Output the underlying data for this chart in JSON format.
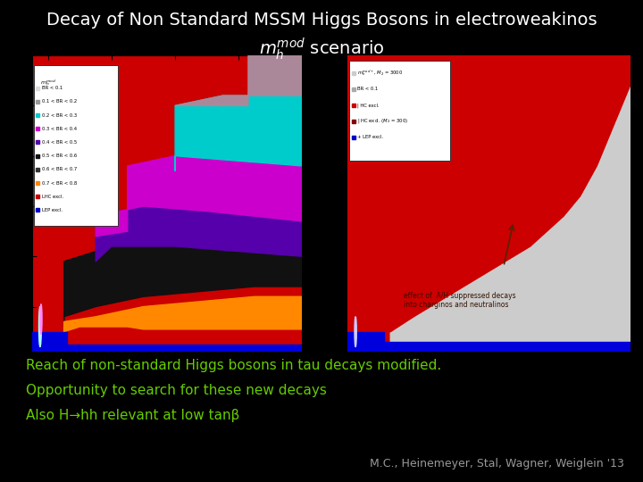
{
  "title_line1": "Decay of Non Standard MSSM Higgs Bosons in electroweakinos",
  "title_line2": "$m_h^{mod}$ scenario",
  "title_color": "#ffffff",
  "bg_color": "#000000",
  "bottom_text_lines": [
    "Reach of non-standard Higgs bosons in tau decays modified.",
    "Opportunity to search for these new decays",
    "Also H→hh relevant at low tanβ"
  ],
  "bottom_text_color": "#66cc00",
  "citation": "M.C., Heinemeyer, Stal, Wagner, Weiglein '13",
  "citation_color": "#999999",
  "title_fontsize": 14,
  "subtitle_fontsize": 14,
  "body_fontsize": 11,
  "citation_fontsize": 9,
  "left_legend": [
    [
      "#ddddff",
      "BR < 0.1"
    ],
    [
      "#999999",
      "0.1 < BR < 0.2"
    ],
    [
      "#00cccc",
      "0.2 < BR < 0.3"
    ],
    [
      "#cc00cc",
      "0.3 < BR < 0.4"
    ],
    [
      "#5500aa",
      "0.4 < BR < 0.5"
    ],
    [
      "#111111",
      "0.5 < BR < 0.6"
    ],
    [
      "#222222",
      "0.6 < BR < 0.7"
    ],
    [
      "#ff8800",
      "0.7 < BR < 0.8"
    ],
    [
      "#cc0000",
      "LHC excl."
    ],
    [
      "#0000cc",
      "LEP excl."
    ]
  ],
  "right_legend": [
    [
      "#cccccc",
      "$m_h^{mod+}$, $M_2$ = 3000"
    ],
    [
      "#cccccc",
      "BR < 0.1"
    ],
    [
      "#cc0000",
      "| HC excl."
    ],
    [
      "#880000",
      "| HC excl. ($M_2$ = 300)"
    ],
    [
      "#0000cc",
      "+ LEP excl."
    ]
  ]
}
